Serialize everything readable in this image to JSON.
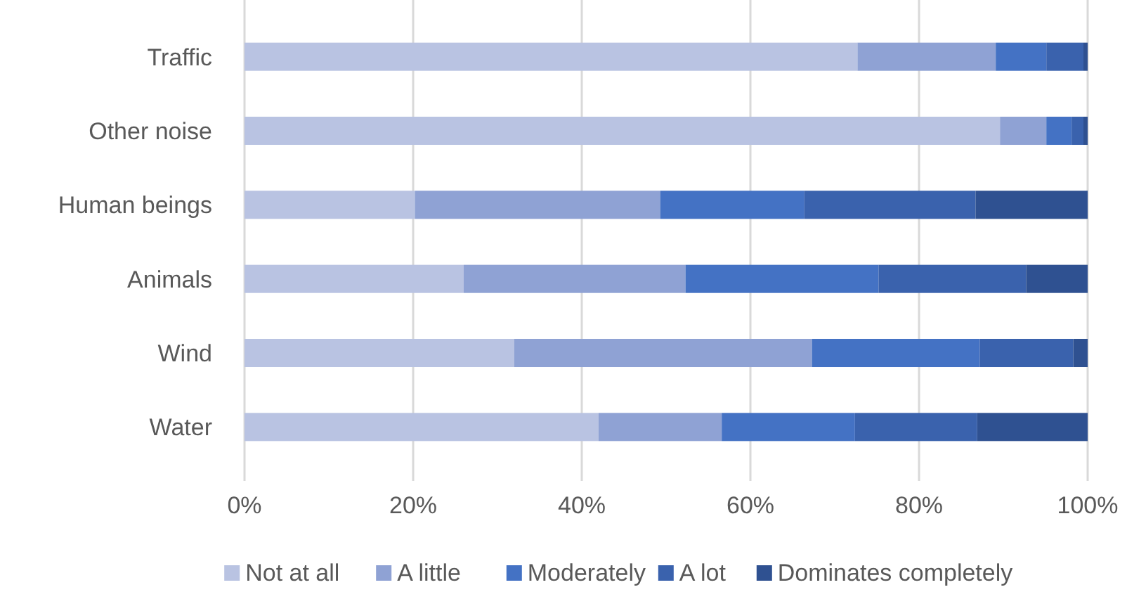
{
  "chart_data": {
    "type": "bar",
    "orientation": "horizontal",
    "stacked": true,
    "categories": [
      "Traffic",
      "Other noise",
      "Human beings",
      "Animals",
      "Wind",
      "Water"
    ],
    "series": [
      {
        "name": "Not at all",
        "color": "#b9c3e2",
        "values": [
          72.7,
          89.6,
          20.2,
          26,
          32,
          42
        ]
      },
      {
        "name": "A little",
        "color": "#8fa2d4",
        "values": [
          16.4,
          5.5,
          29.1,
          26.3,
          35.3,
          14.6
        ]
      },
      {
        "name": "Moderately",
        "color": "#4472c4",
        "values": [
          6,
          3,
          17.1,
          22.9,
          19.9,
          15.8
        ]
      },
      {
        "name": "A lot",
        "color": "#3a62ad",
        "values": [
          4.4,
          1.4,
          20.3,
          17.5,
          11.1,
          14.5
        ]
      },
      {
        "name": "Dominates completely",
        "color": "#2f5191",
        "values": [
          0.5,
          0.5,
          13.3,
          7.3,
          1.7,
          13.1
        ]
      }
    ],
    "xlim": [
      0,
      100
    ],
    "xticks": [
      {
        "value": 0,
        "label": "0%"
      },
      {
        "value": 20,
        "label": "20%"
      },
      {
        "value": 40,
        "label": "40%"
      },
      {
        "value": 60,
        "label": "60%"
      },
      {
        "value": 80,
        "label": "80%"
      },
      {
        "value": 100,
        "label": "100%"
      }
    ],
    "grid": "x",
    "legend": "bottom"
  }
}
